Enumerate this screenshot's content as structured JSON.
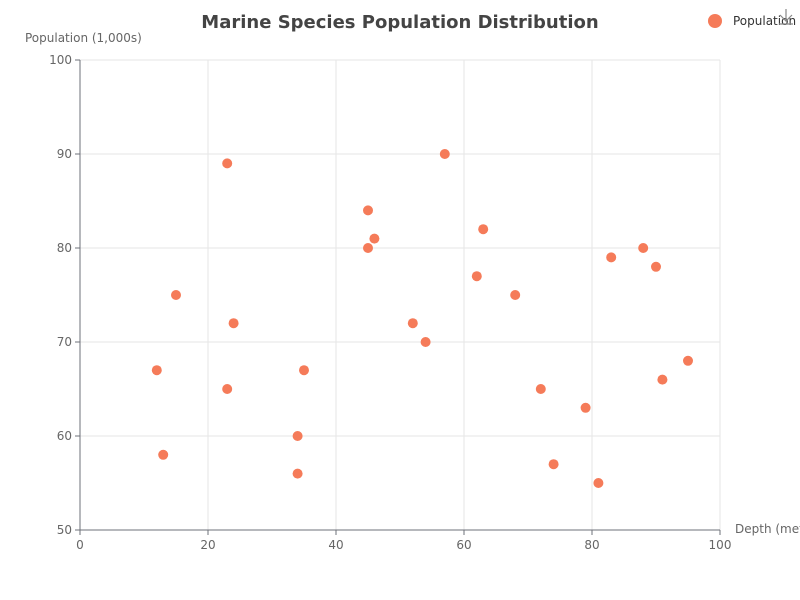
{
  "colors": {
    "point": "#f57b59"
  },
  "toolbox": {
    "icon": "download-icon"
  },
  "chart_data": {
    "type": "scatter",
    "title": "Marine Species Population Distribution",
    "xlabel": "Depth (meters)",
    "ylabel": "Population (1,000s)",
    "xlim": [
      0,
      100
    ],
    "ylim": [
      50,
      100
    ],
    "x_ticks": [
      "0",
      "20",
      "40",
      "60",
      "80",
      "100"
    ],
    "y_ticks": [
      "50",
      "60",
      "70",
      "80",
      "90",
      "100"
    ],
    "grid": true,
    "legend_position": "top-right",
    "series": [
      {
        "name": "Population",
        "points": [
          [
            12,
            67
          ],
          [
            13,
            58
          ],
          [
            15,
            75
          ],
          [
            23,
            89
          ],
          [
            23,
            65
          ],
          [
            24,
            72
          ],
          [
            34,
            60
          ],
          [
            34,
            56
          ],
          [
            35,
            67
          ],
          [
            45,
            84
          ],
          [
            45,
            80
          ],
          [
            46,
            81
          ],
          [
            52,
            72
          ],
          [
            54,
            70
          ],
          [
            57,
            90
          ],
          [
            62,
            77
          ],
          [
            63,
            82
          ],
          [
            68,
            75
          ],
          [
            72,
            65
          ],
          [
            74,
            57
          ],
          [
            79,
            63
          ],
          [
            81,
            55
          ],
          [
            83,
            79
          ],
          [
            88,
            80
          ],
          [
            90,
            78
          ],
          [
            91,
            66
          ],
          [
            95,
            68
          ]
        ]
      }
    ]
  }
}
